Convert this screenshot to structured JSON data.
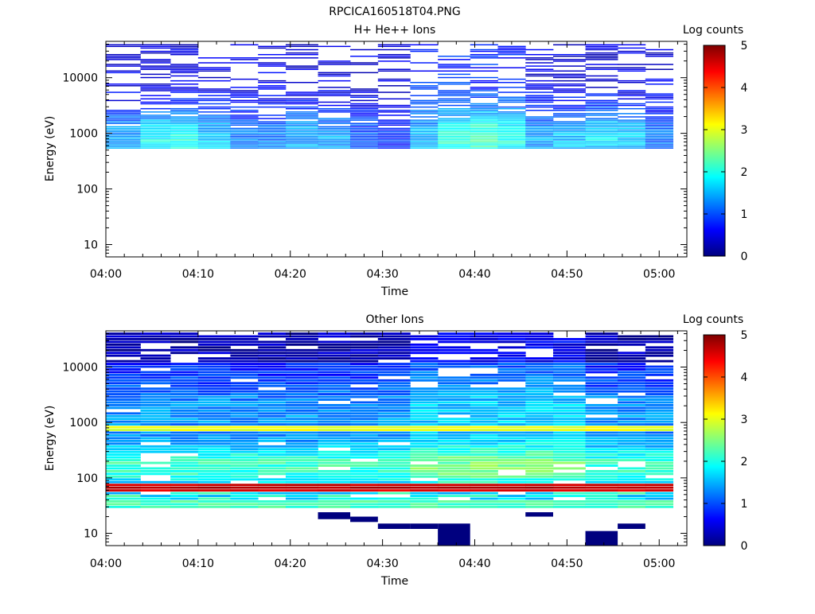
{
  "figure": {
    "title": "RPCICA160518T04.PNG"
  },
  "colormap": [
    "#00007f",
    "#0000ff",
    "#0080ff",
    "#00ffff",
    "#80ff80",
    "#ffff00",
    "#ff8000",
    "#ff0000",
    "#7f0000"
  ],
  "chart_data": [
    {
      "type": "heatmap",
      "title": "H+ He++ Ions",
      "xlabel": "Time",
      "ylabel": "Energy (eV)",
      "x_ticks": [
        "04:00",
        "04:10",
        "04:20",
        "04:30",
        "04:40",
        "04:50",
        "05:00"
      ],
      "x_tick_minutes": [
        0,
        10,
        20,
        30,
        40,
        50,
        60
      ],
      "x_range_minutes": [
        0,
        63
      ],
      "y_scale": "log",
      "y_range": [
        6,
        45000
      ],
      "y_ticks": [
        10,
        100,
        1000,
        10000
      ],
      "y_tick_labels": [
        "10",
        "100",
        "1000",
        "10000"
      ],
      "time_bins_minutes": [
        0,
        3.75,
        7,
        10,
        13.5,
        16.5,
        19.5,
        23,
        26.5,
        29.5,
        33,
        36,
        39.5,
        42.5,
        45.5,
        48.5,
        52,
        55.5,
        58.5,
        61.5
      ],
      "energy_range_eV": [
        520,
        40000
      ],
      "profile": "protons",
      "colorbar": {
        "label": "Log counts",
        "min": 0,
        "max": 5,
        "ticks": [
          "0",
          "1",
          "2",
          "3",
          "4",
          "5"
        ]
      }
    },
    {
      "type": "heatmap",
      "title": "Other Ions",
      "xlabel": "Time",
      "ylabel": "Energy (eV)",
      "x_ticks": [
        "04:00",
        "04:10",
        "04:20",
        "04:30",
        "04:40",
        "04:50",
        "05:00"
      ],
      "x_tick_minutes": [
        0,
        10,
        20,
        30,
        40,
        50,
        60
      ],
      "x_range_minutes": [
        0,
        63
      ],
      "y_scale": "log",
      "y_range": [
        6,
        45000
      ],
      "y_ticks": [
        10,
        100,
        1000,
        10000
      ],
      "y_tick_labels": [
        "10",
        "100",
        "1000",
        "10000"
      ],
      "time_bins_minutes": [
        0,
        3.75,
        7,
        10,
        13.5,
        16.5,
        19.5,
        23,
        26.5,
        29.5,
        33,
        36,
        39.5,
        42.5,
        45.5,
        48.5,
        52,
        55.5,
        58.5,
        61.5
      ],
      "energy_range_eV": [
        28,
        42000
      ],
      "profile": "heavy",
      "features": {
        "band_high_eV": [
          650,
          820
        ],
        "band_high_log_counts": 3.0,
        "band_low_eV": [
          58,
          78
        ],
        "band_low_log_counts": 4.7
      },
      "colorbar": {
        "label": "Log counts",
        "min": 0,
        "max": 5,
        "ticks": [
          "0",
          "1",
          "2",
          "3",
          "4",
          "5"
        ]
      }
    }
  ]
}
